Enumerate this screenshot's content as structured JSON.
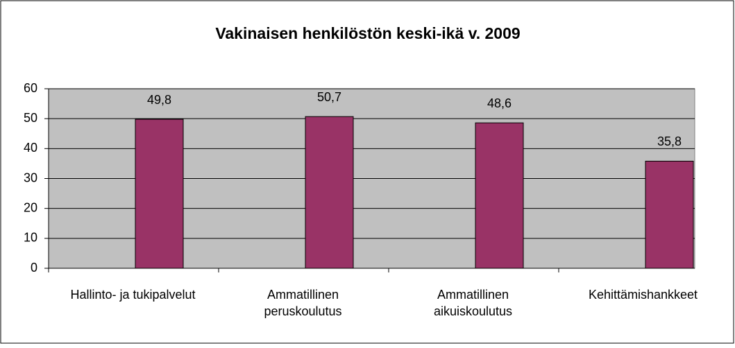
{
  "chart_data": {
    "type": "bar",
    "title": "Vakinaisen henkilöstön keski-ikä v. 2009",
    "categories": [
      "Hallinto- ja tukipalvelut",
      "Ammatillinen\nperuskoulutus",
      "Ammatillinen\naikuiskoulutus",
      "Kehittämishankkeet"
    ],
    "values": [
      49.8,
      50.7,
      48.6,
      35.8
    ],
    "value_labels": [
      "49,8",
      "50,7",
      "48,6",
      "35,8"
    ],
    "color": "#993366",
    "ylim": [
      0,
      60
    ],
    "yticks": [
      0,
      10,
      20,
      30,
      40,
      50,
      60
    ],
    "grid": true
  }
}
